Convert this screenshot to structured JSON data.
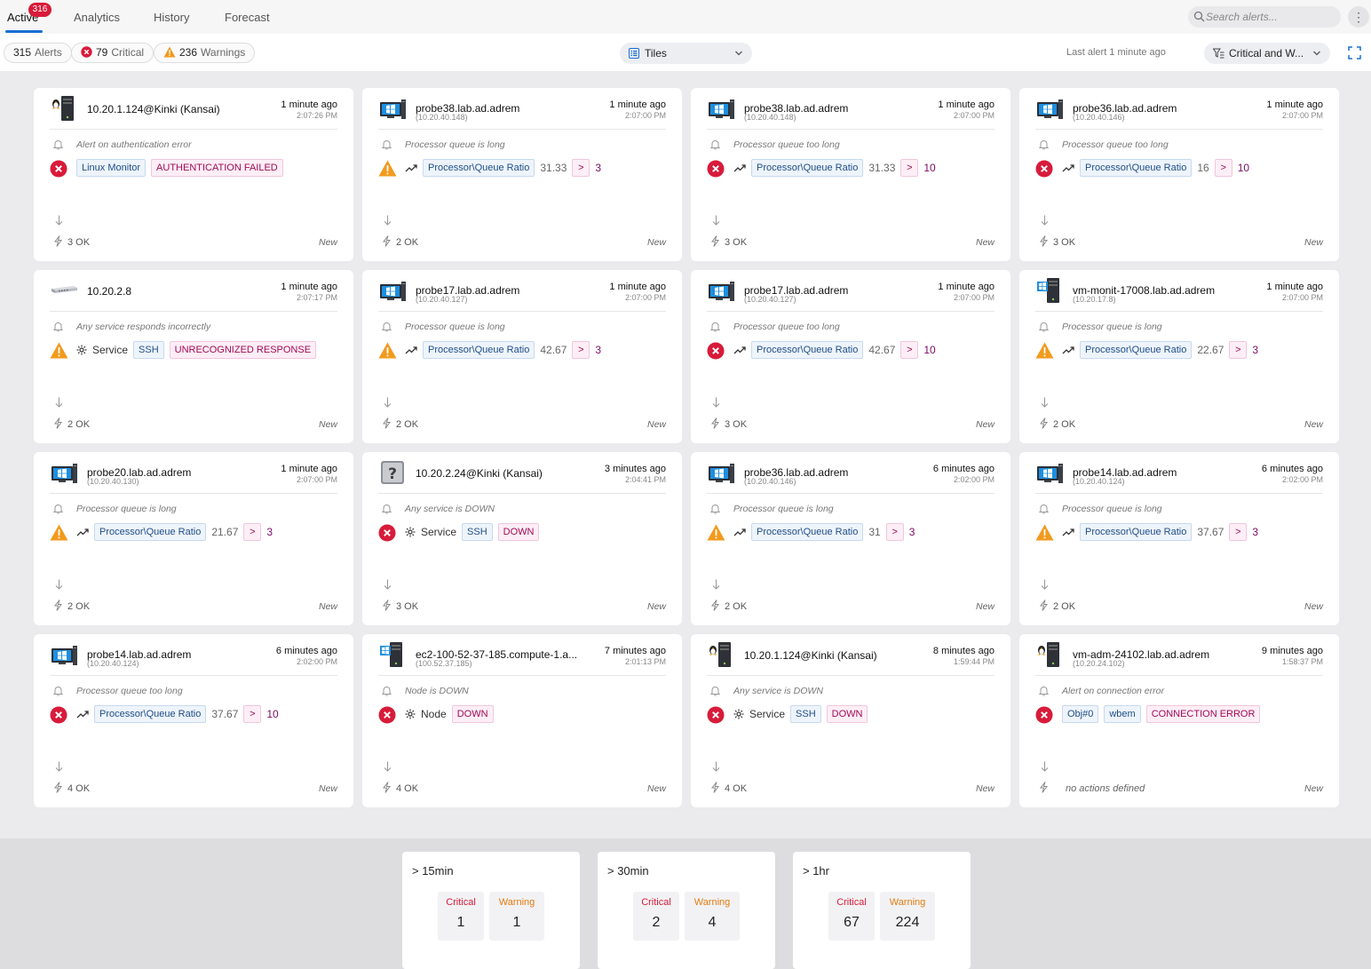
{
  "tabs": [
    {
      "label": "Active",
      "badge": "316"
    },
    {
      "label": "Analytics"
    },
    {
      "label": "History"
    },
    {
      "label": "Forecast"
    }
  ],
  "search": {
    "placeholder": "Search alerts..."
  },
  "menu_glyph": "⋮",
  "summary_pills": {
    "alerts": {
      "count": "315",
      "label": "Alerts"
    },
    "critical": {
      "count": "79",
      "label": "Critical"
    },
    "warnings": {
      "count": "236",
      "label": "Warnings"
    }
  },
  "view_select": {
    "value": "Tiles"
  },
  "last_alert": "Last alert 1 minute ago",
  "filter_select": {
    "value": "Critical and W..."
  },
  "colors": {
    "critical": "#d81b3a",
    "warning": "#f29a1d",
    "accent": "#1a6fd1"
  },
  "tiles": [
    {
      "host": "10.20.1.124@Kinki (Kansai)",
      "ip": "",
      "time": "1 minute ago",
      "clock": "2:07:26 PM",
      "device": "linux",
      "desc": "Alert on authentication error",
      "severity": "critical",
      "kind": "tags",
      "tags": [
        "Linux Monitor"
      ],
      "status": "AUTHENTICATION FAILED",
      "ok": "3 OK",
      "new": "New"
    },
    {
      "host": "probe38.lab.ad.adrem",
      "ip": "(10.20.40.148)",
      "time": "1 minute ago",
      "clock": "2:07:00 PM",
      "device": "windows",
      "desc": "Processor queue is long",
      "severity": "warning",
      "kind": "metric",
      "metric": "Processor\\Queue Ratio",
      "value": "31.33",
      "op": ">",
      "threshold": "3",
      "ok": "2 OK",
      "new": "New"
    },
    {
      "host": "probe38.lab.ad.adrem",
      "ip": "(10.20.40.148)",
      "time": "1 minute ago",
      "clock": "2:07:00 PM",
      "device": "windows",
      "desc": "Processor queue too long",
      "severity": "critical",
      "kind": "metric",
      "metric": "Processor\\Queue Ratio",
      "value": "31.33",
      "op": ">",
      "threshold": "10",
      "ok": "3 OK",
      "new": "New"
    },
    {
      "host": "probe36.lab.ad.adrem",
      "ip": "(10.20.40.146)",
      "time": "1 minute ago",
      "clock": "2:07:00 PM",
      "device": "windows",
      "desc": "Processor queue too long",
      "severity": "critical",
      "kind": "metric",
      "metric": "Processor\\Queue Ratio",
      "value": "16",
      "op": ">",
      "threshold": "10",
      "ok": "3 OK",
      "new": "New"
    },
    {
      "host": "10.20.2.8",
      "ip": "",
      "time": "1 minute ago",
      "clock": "2:07:17 PM",
      "device": "switch",
      "desc": "Any service responds incorrectly",
      "severity": "warning",
      "kind": "service",
      "label": "Service",
      "service": "SSH",
      "status": "UNRECOGNIZED RESPONSE",
      "ok": "2 OK",
      "new": "New"
    },
    {
      "host": "probe17.lab.ad.adrem",
      "ip": "(10.20.40.127)",
      "time": "1 minute ago",
      "clock": "2:07:00 PM",
      "device": "windows",
      "desc": "Processor queue is long",
      "severity": "warning",
      "kind": "metric",
      "metric": "Processor\\Queue Ratio",
      "value": "42.67",
      "op": ">",
      "threshold": "3",
      "ok": "2 OK",
      "new": "New"
    },
    {
      "host": "probe17.lab.ad.adrem",
      "ip": "(10.20.40.127)",
      "time": "1 minute ago",
      "clock": "2:07:00 PM",
      "device": "windows",
      "desc": "Processor queue too long",
      "severity": "critical",
      "kind": "metric",
      "metric": "Processor\\Queue Ratio",
      "value": "42.67",
      "op": ">",
      "threshold": "10",
      "ok": "3 OK",
      "new": "New"
    },
    {
      "host": "vm-monit-17008.lab.ad.adrem",
      "ip": "(10.20.17.8)",
      "time": "1 minute ago",
      "clock": "2:07:00 PM",
      "device": "winserver",
      "desc": "Processor queue is long",
      "severity": "warning",
      "kind": "metric",
      "metric": "Processor\\Queue Ratio",
      "value": "22.67",
      "op": ">",
      "threshold": "3",
      "ok": "2 OK",
      "new": "New"
    },
    {
      "host": "probe20.lab.ad.adrem",
      "ip": "(10.20.40.130)",
      "time": "1 minute ago",
      "clock": "2:07:00 PM",
      "device": "windows",
      "desc": "Processor queue is long",
      "severity": "warning",
      "kind": "metric",
      "metric": "Processor\\Queue Ratio",
      "value": "21.67",
      "op": ">",
      "threshold": "3",
      "ok": "2 OK",
      "new": "New"
    },
    {
      "host": "10.20.2.24@Kinki (Kansai)",
      "ip": "",
      "time": "3 minutes ago",
      "clock": "2:04:41 PM",
      "device": "unknown",
      "desc": "Any service is DOWN",
      "severity": "critical",
      "kind": "service",
      "label": "Service",
      "service": "SSH",
      "status": "DOWN",
      "ok": "3 OK",
      "new": "New"
    },
    {
      "host": "probe36.lab.ad.adrem",
      "ip": "(10.20.40.146)",
      "time": "6 minutes ago",
      "clock": "2:02:00 PM",
      "device": "windows",
      "desc": "Processor queue is long",
      "severity": "warning",
      "kind": "metric",
      "metric": "Processor\\Queue Ratio",
      "value": "31",
      "op": ">",
      "threshold": "3",
      "ok": "2 OK",
      "new": "New"
    },
    {
      "host": "probe14.lab.ad.adrem",
      "ip": "(10.20.40.124)",
      "time": "6 minutes ago",
      "clock": "2:02:00 PM",
      "device": "windows",
      "desc": "Processor queue is long",
      "severity": "warning",
      "kind": "metric",
      "metric": "Processor\\Queue Ratio",
      "value": "37.67",
      "op": ">",
      "threshold": "3",
      "ok": "2 OK",
      "new": "New"
    },
    {
      "host": "probe14.lab.ad.adrem",
      "ip": "(10.20.40.124)",
      "time": "6 minutes ago",
      "clock": "2:02:00 PM",
      "device": "windows",
      "desc": "Processor queue too long",
      "severity": "critical",
      "kind": "metric",
      "metric": "Processor\\Queue Ratio",
      "value": "37.67",
      "op": ">",
      "threshold": "10",
      "ok": "4 OK",
      "new": "New"
    },
    {
      "host": "ec2-100-52-37-185.compute-1.a...",
      "ip": "(100.52.37.185)",
      "time": "7 minutes ago",
      "clock": "2:01:13 PM",
      "device": "winserver",
      "desc": "Node is DOWN",
      "severity": "critical",
      "kind": "node",
      "label": "Node",
      "status": "DOWN",
      "ok": "4 OK",
      "new": "New"
    },
    {
      "host": "10.20.1.124@Kinki (Kansai)",
      "ip": "",
      "time": "8 minutes ago",
      "clock": "1:59:44 PM",
      "device": "linux",
      "desc": "Any service is DOWN",
      "severity": "critical",
      "kind": "service",
      "label": "Service",
      "service": "SSH",
      "status": "DOWN",
      "ok": "4 OK",
      "new": "New"
    },
    {
      "host": "vm-adm-24102.lab.ad.adrem",
      "ip": "(10.20.24.102)",
      "time": "9 minutes ago",
      "clock": "1:58:37 PM",
      "device": "linux",
      "desc": "Alert on connection error",
      "severity": "critical",
      "kind": "tags",
      "tags": [
        "Obj#0",
        "wbem"
      ],
      "status": "CONNECTION ERROR",
      "ok": "no actions defined",
      "new": "New"
    }
  ],
  "summary": [
    {
      "title": "> 15min",
      "critical_label": "Critical",
      "critical": "1",
      "warning_label": "Warning",
      "warning": "1"
    },
    {
      "title": "> 30min",
      "critical_label": "Critical",
      "critical": "2",
      "warning_label": "Warning",
      "warning": "4"
    },
    {
      "title": "> 1hr",
      "critical_label": "Critical",
      "critical": "67",
      "warning_label": "Warning",
      "warning": "224"
    }
  ]
}
